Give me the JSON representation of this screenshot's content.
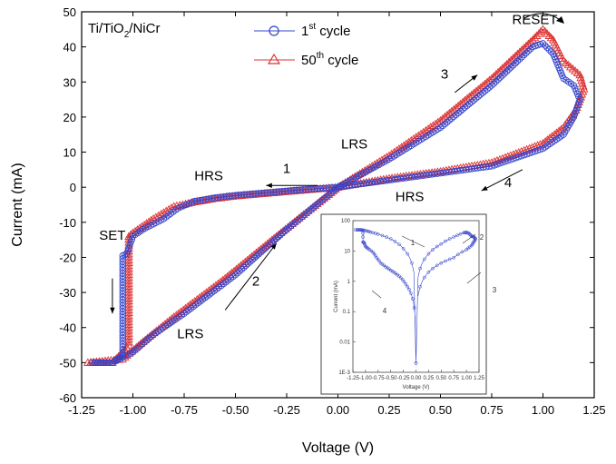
{
  "chart_data": {
    "type": "line",
    "title": "",
    "xlabel": "Voltage (V)",
    "ylabel": "Current (mA)",
    "xlim": [
      -1.25,
      1.25
    ],
    "ylim": [
      -60,
      50
    ],
    "xticks": [
      -1.25,
      -1.0,
      -0.75,
      -0.5,
      -0.25,
      0.0,
      0.25,
      0.5,
      0.75,
      1.0,
      1.25
    ],
    "xtick_labels": [
      "-1.25",
      "-1.00",
      "-0.75",
      "-0.50",
      "-0.25",
      "0.00",
      "0.25",
      "0.50",
      "0.75",
      "1.00",
      "1.25"
    ],
    "yticks": [
      -60,
      -50,
      -40,
      -30,
      -20,
      -10,
      0,
      10,
      20,
      30,
      40,
      50
    ],
    "ytick_labels": [
      "-60",
      "-50",
      "-40",
      "-30",
      "-20",
      "-10",
      "0",
      "10",
      "20",
      "30",
      "40",
      "50"
    ],
    "sample_label": {
      "pre": "Ti/TiO",
      "sub": "2",
      "post": "/NiCr"
    },
    "series": [
      {
        "name_pre": "1",
        "name_sup": "st",
        "name_post": " cycle",
        "color": "#3344cc",
        "marker": "circle",
        "points": [
          [
            0.0,
            0
          ],
          [
            -0.1,
            -0.4
          ],
          [
            -0.2,
            -0.8
          ],
          [
            -0.3,
            -1.3
          ],
          [
            -0.4,
            -1.8
          ],
          [
            -0.5,
            -2.3
          ],
          [
            -0.6,
            -3.0
          ],
          [
            -0.7,
            -4.0
          ],
          [
            -0.78,
            -6.0
          ],
          [
            -0.85,
            -9.0
          ],
          [
            -0.95,
            -12.0
          ],
          [
            -1.0,
            -14.0
          ],
          [
            -1.03,
            -19.0
          ],
          [
            -1.05,
            -19.5
          ],
          [
            -1.05,
            -48.0
          ],
          [
            -1.1,
            -50.0
          ],
          [
            -1.2,
            -50.0
          ],
          [
            -1.1,
            -50.0
          ],
          [
            -1.0,
            -47.0
          ],
          [
            -0.9,
            -42.0
          ],
          [
            -0.75,
            -36.0
          ],
          [
            -0.5,
            -25.0
          ],
          [
            -0.25,
            -12.0
          ],
          [
            0.0,
            0.0
          ],
          [
            0.25,
            8.0
          ],
          [
            0.5,
            17.0
          ],
          [
            0.75,
            29.0
          ],
          [
            0.95,
            40.0
          ],
          [
            1.0,
            41.0
          ],
          [
            1.05,
            38.0
          ],
          [
            1.1,
            31.0
          ],
          [
            1.15,
            29.0
          ],
          [
            1.18,
            25.0
          ],
          [
            1.15,
            20.0
          ],
          [
            1.1,
            15.0
          ],
          [
            1.0,
            11.0
          ],
          [
            0.75,
            6.0
          ],
          [
            0.5,
            4.0
          ],
          [
            0.25,
            2.0
          ],
          [
            0.0,
            0.0
          ]
        ]
      },
      {
        "name_pre": "50",
        "name_sup": "th",
        "name_post": " cycle",
        "color": "#dd3333",
        "marker": "triangle",
        "points": [
          [
            0.0,
            0
          ],
          [
            -0.1,
            -0.5
          ],
          [
            -0.2,
            -1.0
          ],
          [
            -0.3,
            -1.5
          ],
          [
            -0.4,
            -2.0
          ],
          [
            -0.5,
            -2.5
          ],
          [
            -0.6,
            -3.2
          ],
          [
            -0.7,
            -4.2
          ],
          [
            -0.8,
            -5.5
          ],
          [
            -0.9,
            -9.0
          ],
          [
            -1.0,
            -13.0
          ],
          [
            -1.02,
            -14.0
          ],
          [
            -1.02,
            -45.0
          ],
          [
            -1.05,
            -47.0
          ],
          [
            -1.1,
            -50.0
          ],
          [
            -1.22,
            -50.0
          ],
          [
            -1.05,
            -49.0
          ],
          [
            -0.95,
            -44.0
          ],
          [
            -0.8,
            -37.0
          ],
          [
            -0.55,
            -26.0
          ],
          [
            -0.3,
            -14.0
          ],
          [
            0.0,
            0.0
          ],
          [
            0.25,
            9.0
          ],
          [
            0.5,
            19.0
          ],
          [
            0.75,
            31.0
          ],
          [
            0.95,
            42.0
          ],
          [
            1.0,
            45.0
          ],
          [
            1.05,
            42.0
          ],
          [
            1.1,
            36.0
          ],
          [
            1.18,
            32.0
          ],
          [
            1.2,
            28.0
          ],
          [
            1.16,
            22.0
          ],
          [
            1.1,
            17.0
          ],
          [
            1.0,
            12.5
          ],
          [
            0.75,
            7.0
          ],
          [
            0.5,
            4.5
          ],
          [
            0.25,
            2.5
          ],
          [
            0.0,
            0.0
          ]
        ]
      }
    ],
    "annotations": [
      {
        "text": "RESET",
        "x": 0.96,
        "y": 46.5
      },
      {
        "text": "3",
        "x": 0.52,
        "y": 31.0
      },
      {
        "text": "LRS",
        "x": 0.08,
        "y": 11.0
      },
      {
        "text": "HRS",
        "x": -0.63,
        "y": 2.0
      },
      {
        "text": "1",
        "x": -0.25,
        "y": 4.0
      },
      {
        "text": "HRS",
        "x": 0.35,
        "y": -4.0
      },
      {
        "text": "4",
        "x": 0.83,
        "y": 0.0
      },
      {
        "text": "SET",
        "x": -1.1,
        "y": -15.0
      },
      {
        "text": "2",
        "x": -0.4,
        "y": -28.0
      },
      {
        "text": "LRS",
        "x": -0.72,
        "y": -43.0
      }
    ],
    "inset": {
      "type": "line",
      "xlabel": "Voltage (V)",
      "ylabel": "Current (mA)",
      "yscale": "log",
      "xticks": [
        "-1.25",
        "-1.00",
        "-0.75",
        "-0.50",
        "-0.25",
        "0.00",
        "0.25",
        "0.50",
        "0.75",
        "1.00",
        "1.25"
      ],
      "yticks": [
        "1E-3",
        "0.01",
        "0.1",
        "1",
        "10",
        "100"
      ],
      "annotations": [
        "1",
        "2",
        "3",
        "4"
      ]
    }
  }
}
